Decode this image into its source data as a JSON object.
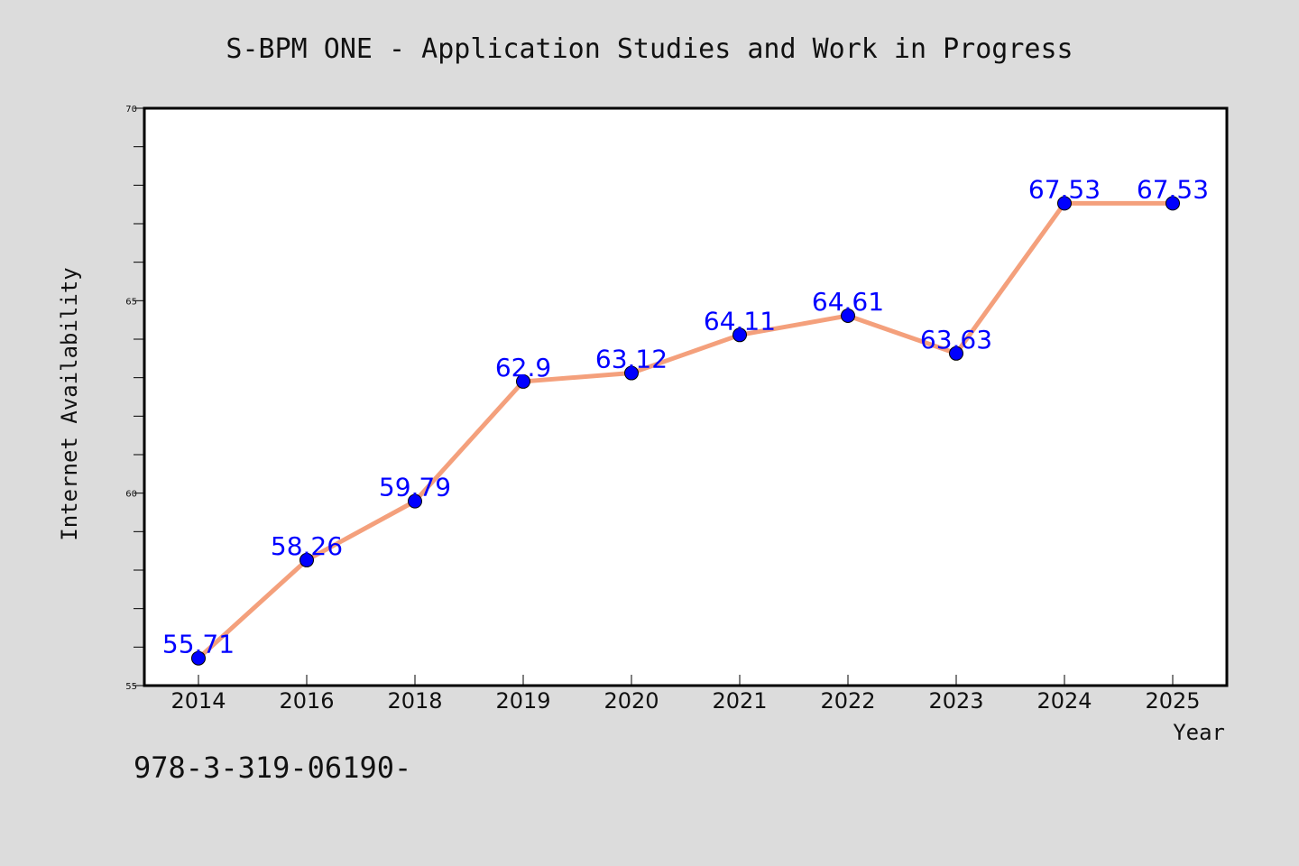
{
  "chart_data": {
    "type": "line",
    "title": "S-BPM ONE - Application Studies and Work in Progress",
    "xlabel": "Year",
    "ylabel": "Internet Availability",
    "categories": [
      "2014",
      "2016",
      "2018",
      "2019",
      "2020",
      "2021",
      "2022",
      "2023",
      "2024",
      "2025"
    ],
    "series": [
      {
        "values": [
          55.71,
          58.26,
          59.79,
          62.9,
          63.12,
          64.11,
          64.61,
          63.63,
          67.53,
          67.53
        ],
        "labels": [
          "55.71",
          "58.26",
          "59.79",
          "62.9",
          "63.12",
          "64.11",
          "64.61",
          "63.63",
          "67.53",
          "67.53"
        ]
      }
    ],
    "ylim": [
      55,
      70
    ],
    "yticks": [
      "55",
      "60",
      "65",
      "70"
    ],
    "grid": false,
    "legend": "none"
  },
  "footer": {
    "code": "978-3-319-06190-"
  },
  "colors": {
    "background": "#dcdcdc",
    "plot_area": "#ffffff",
    "line": "#f4a07c",
    "marker": "#0000ff",
    "data_label": "#0000ff",
    "axis": "#000000"
  }
}
